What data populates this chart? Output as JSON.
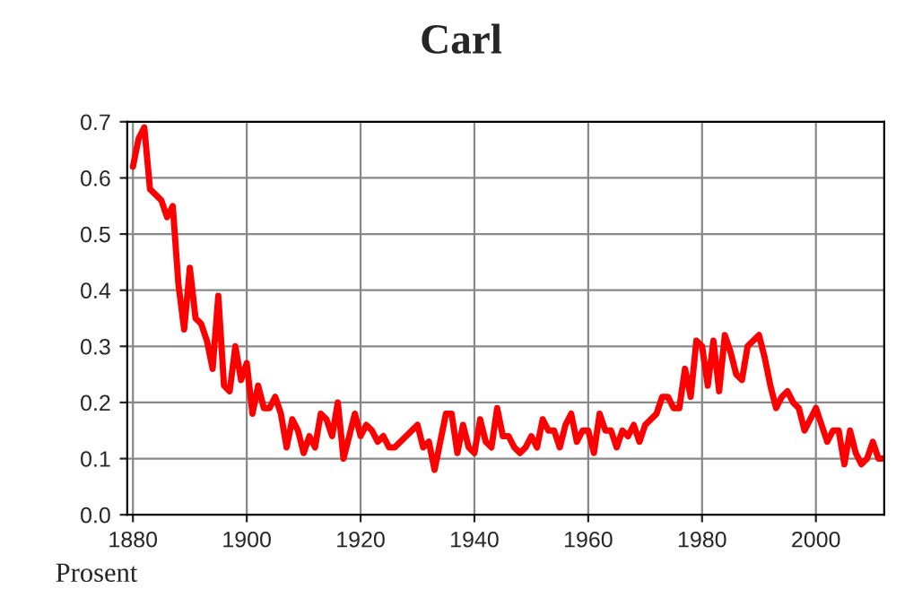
{
  "chart_data": {
    "type": "line",
    "title": "Carl",
    "annotations": [
      "Prosent"
    ],
    "x": [
      1880,
      1881,
      1882,
      1883,
      1884,
      1885,
      1886,
      1887,
      1888,
      1889,
      1890,
      1891,
      1892,
      1893,
      1894,
      1895,
      1896,
      1897,
      1898,
      1899,
      1900,
      1901,
      1902,
      1903,
      1904,
      1905,
      1906,
      1907,
      1908,
      1909,
      1910,
      1911,
      1912,
      1913,
      1914,
      1915,
      1916,
      1917,
      1918,
      1919,
      1920,
      1921,
      1922,
      1923,
      1924,
      1925,
      1926,
      1927,
      1928,
      1929,
      1930,
      1931,
      1932,
      1933,
      1934,
      1935,
      1936,
      1937,
      1938,
      1939,
      1940,
      1941,
      1942,
      1943,
      1944,
      1945,
      1946,
      1947,
      1948,
      1949,
      1950,
      1951,
      1952,
      1953,
      1954,
      1955,
      1956,
      1957,
      1958,
      1959,
      1960,
      1961,
      1962,
      1963,
      1964,
      1965,
      1966,
      1967,
      1968,
      1969,
      1970,
      1971,
      1972,
      1973,
      1974,
      1975,
      1976,
      1977,
      1978,
      1979,
      1980,
      1981,
      1982,
      1983,
      1984,
      1985,
      1986,
      1987,
      1988,
      1989,
      1990,
      1991,
      1992,
      1993,
      1994,
      1995,
      1996,
      1997,
      1998,
      1999,
      2000,
      2001,
      2002,
      2003,
      2004,
      2005,
      2006,
      2007,
      2008,
      2009,
      2010,
      2011,
      2012
    ],
    "series": [
      {
        "color": "#ff0000",
        "values": [
          0.62,
          0.67,
          0.69,
          0.58,
          0.57,
          0.56,
          0.53,
          0.55,
          0.41,
          0.33,
          0.44,
          0.35,
          0.34,
          0.31,
          0.26,
          0.39,
          0.23,
          0.22,
          0.3,
          0.24,
          0.27,
          0.18,
          0.23,
          0.19,
          0.19,
          0.21,
          0.18,
          0.12,
          0.17,
          0.15,
          0.11,
          0.14,
          0.12,
          0.18,
          0.17,
          0.14,
          0.2,
          0.1,
          0.14,
          0.18,
          0.14,
          0.16,
          0.15,
          0.13,
          0.14,
          0.12,
          0.12,
          0.13,
          0.14,
          0.15,
          0.16,
          0.12,
          0.13,
          0.08,
          0.13,
          0.18,
          0.18,
          0.11,
          0.16,
          0.12,
          0.11,
          0.17,
          0.13,
          0.12,
          0.19,
          0.14,
          0.14,
          0.12,
          0.11,
          0.12,
          0.14,
          0.12,
          0.17,
          0.15,
          0.15,
          0.12,
          0.16,
          0.18,
          0.13,
          0.15,
          0.15,
          0.11,
          0.18,
          0.15,
          0.15,
          0.12,
          0.15,
          0.14,
          0.16,
          0.13,
          0.16,
          0.17,
          0.18,
          0.21,
          0.21,
          0.19,
          0.19,
          0.26,
          0.21,
          0.31,
          0.3,
          0.23,
          0.31,
          0.22,
          0.32,
          0.29,
          0.25,
          0.24,
          0.3,
          0.31,
          0.32,
          0.28,
          0.23,
          0.19,
          0.21,
          0.22,
          0.2,
          0.19,
          0.15,
          0.17,
          0.19,
          0.16,
          0.13,
          0.15,
          0.15,
          0.09,
          0.15,
          0.11,
          0.09,
          0.1,
          0.13,
          0.1,
          0.1
        ]
      }
    ],
    "xlim": [
      1879,
      2012
    ],
    "xticks": [
      1880,
      1900,
      1920,
      1940,
      1960,
      1980,
      2000
    ],
    "ylim": [
      0,
      0.7
    ],
    "yticks": [
      {
        "value": 0,
        "label": "0.0"
      },
      {
        "value": 0.1,
        "label": "0.1"
      },
      {
        "value": 0.2,
        "label": "0.2"
      },
      {
        "value": 0.3,
        "label": "0.3"
      },
      {
        "value": 0.4,
        "label": "0.4"
      },
      {
        "value": 0.5,
        "label": "0.5"
      },
      {
        "value": 0.6,
        "label": "0.6"
      },
      {
        "value": 0.7,
        "label": "0.7"
      }
    ],
    "grid": true,
    "marker": "none",
    "line_style": "solid"
  }
}
